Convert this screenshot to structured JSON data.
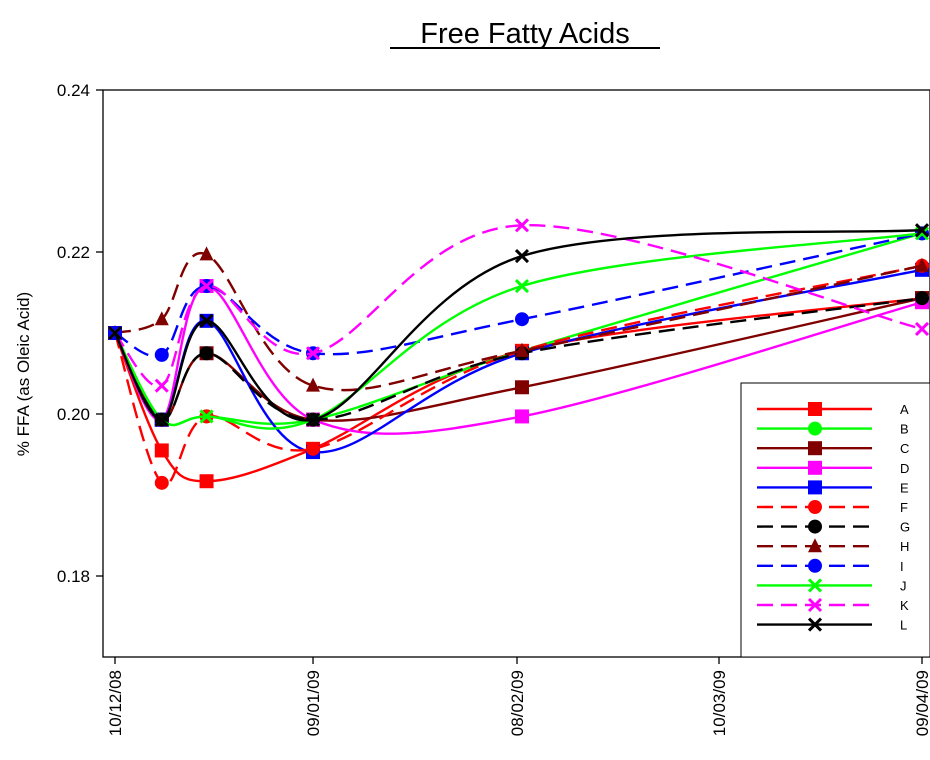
{
  "chart_data": {
    "type": "line",
    "title": "Free Fatty Acids",
    "xlabel": "",
    "ylabel": "% FFA (as Oleic Acid)",
    "ylim": [
      0.17,
      0.24
    ],
    "yticks": [
      {
        "value": 0.18,
        "label": "0.18"
      },
      {
        "value": 0.2,
        "label": "0.20"
      },
      {
        "value": 0.22,
        "label": "0.22"
      },
      {
        "value": 0.24,
        "label": "0.24"
      }
    ],
    "xlim": [
      0,
      811
    ],
    "xticks": [
      {
        "value": 0,
        "label": "10/12/08"
      },
      {
        "value": 199,
        "label": "09/01/09"
      },
      {
        "value": 404,
        "label": "08/02/09"
      },
      {
        "value": 607,
        "label": "10/03/09"
      },
      {
        "value": 811,
        "label": "09/04/09"
      }
    ],
    "x": [
      0,
      47,
      92,
      199,
      409,
      811
    ],
    "grid": false,
    "legend_position": "right",
    "series": [
      {
        "name": "A",
        "color": "#ff0000",
        "dash": "solid",
        "marker": "square",
        "values": [
          0.21,
          0.1955,
          0.1917,
          0.1957,
          0.2078,
          0.2143
        ]
      },
      {
        "name": "B",
        "color": "#00ff00",
        "dash": "solid",
        "marker": "circle",
        "values": [
          0.21,
          0.1993,
          0.1997,
          0.1993,
          0.2078,
          0.2223
        ]
      },
      {
        "name": "C",
        "color": "#800000",
        "dash": "solid",
        "marker": "square",
        "values": [
          0.21,
          0.1993,
          0.2075,
          0.1993,
          0.2033,
          0.2143
        ]
      },
      {
        "name": "D",
        "color": "#ff00ff",
        "dash": "solid",
        "marker": "square",
        "values": [
          0.21,
          0.1993,
          0.2158,
          0.1993,
          0.1997,
          0.2138
        ]
      },
      {
        "name": "E",
        "color": "#0000ff",
        "dash": "solid",
        "marker": "square",
        "values": [
          0.21,
          0.1993,
          0.2115,
          0.1953,
          0.2075,
          0.2178
        ]
      },
      {
        "name": "F",
        "color": "#ff0000",
        "dash": "dash",
        "marker": "circle",
        "values": [
          0.21,
          0.1915,
          0.1997,
          0.1957,
          0.2078,
          0.2183
        ]
      },
      {
        "name": "G",
        "color": "#000000",
        "dash": "dash",
        "marker": "circle",
        "values": [
          0.21,
          0.1993,
          0.2075,
          0.1993,
          0.2075,
          0.2143
        ]
      },
      {
        "name": "H",
        "color": "#800000",
        "dash": "dash",
        "marker": "triangle",
        "values": [
          0.21,
          0.2117,
          0.2197,
          0.2035,
          0.2078,
          0.2183
        ]
      },
      {
        "name": "I",
        "color": "#0000ff",
        "dash": "dash",
        "marker": "circle",
        "values": [
          0.21,
          0.2073,
          0.2158,
          0.2075,
          0.2117,
          0.2223
        ]
      },
      {
        "name": "J",
        "color": "#00ff00",
        "dash": "solid",
        "marker": "x",
        "values": [
          0.21,
          0.1993,
          0.1997,
          0.1993,
          0.2158,
          0.2223
        ]
      },
      {
        "name": "K",
        "color": "#ff00ff",
        "dash": "dash",
        "marker": "x",
        "values": [
          0.21,
          0.2035,
          0.2158,
          0.2075,
          0.2233,
          0.2105
        ]
      },
      {
        "name": "L",
        "color": "#000000",
        "dash": "solid",
        "marker": "x",
        "values": [
          0.21,
          0.1993,
          0.2115,
          0.1993,
          0.2195,
          0.2227
        ]
      }
    ]
  }
}
